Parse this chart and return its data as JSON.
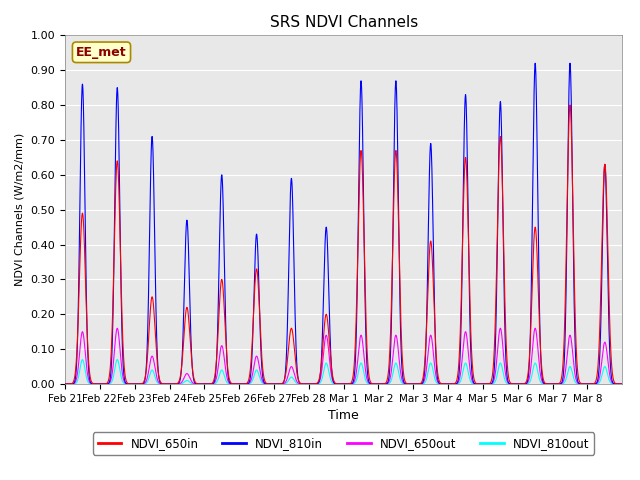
{
  "title": "SRS NDVI Channels",
  "ylabel": "NDVI Channels (W/m2/mm)",
  "xlabel": "Time",
  "annotation": "EE_met",
  "ylim": [
    0.0,
    1.0
  ],
  "yticks": [
    0.0,
    0.1,
    0.2,
    0.3,
    0.4,
    0.5,
    0.6,
    0.7,
    0.8,
    0.9,
    1.0
  ],
  "colors": {
    "NDVI_650in": "#ff0000",
    "NDVI_810in": "#0000ff",
    "NDVI_650out": "#ff00ff",
    "NDVI_810out": "#00ffff"
  },
  "bg_color": "#e8e8e8",
  "legend_labels": [
    "NDVI_650in",
    "NDVI_810in",
    "NDVI_650out",
    "NDVI_810out"
  ],
  "x_tick_labels": [
    "Feb 21",
    "Feb 22",
    "Feb 23",
    "Feb 24",
    "Feb 25",
    "Feb 26",
    "Feb 27",
    "Feb 28",
    "Mar 1",
    "Mar 2",
    "Mar 3",
    "Mar 4",
    "Mar 5",
    "Mar 6",
    "Mar 7",
    "Mar 8"
  ],
  "peaks_810in": [
    0.86,
    0.85,
    0.71,
    0.47,
    0.6,
    0.43,
    0.59,
    0.45,
    0.87,
    0.87,
    0.69,
    0.83,
    0.81,
    0.92,
    0.92,
    0.63
  ],
  "peaks_650in": [
    0.49,
    0.64,
    0.25,
    0.22,
    0.3,
    0.33,
    0.16,
    0.2,
    0.67,
    0.67,
    0.41,
    0.65,
    0.71,
    0.45,
    0.8,
    0.63
  ],
  "peaks_650out": [
    0.15,
    0.16,
    0.08,
    0.03,
    0.11,
    0.08,
    0.05,
    0.14,
    0.14,
    0.14,
    0.14,
    0.15,
    0.16,
    0.16,
    0.14,
    0.12
  ],
  "peaks_810out": [
    0.07,
    0.07,
    0.04,
    0.01,
    0.04,
    0.04,
    0.02,
    0.06,
    0.06,
    0.06,
    0.06,
    0.06,
    0.06,
    0.06,
    0.05,
    0.05
  ]
}
